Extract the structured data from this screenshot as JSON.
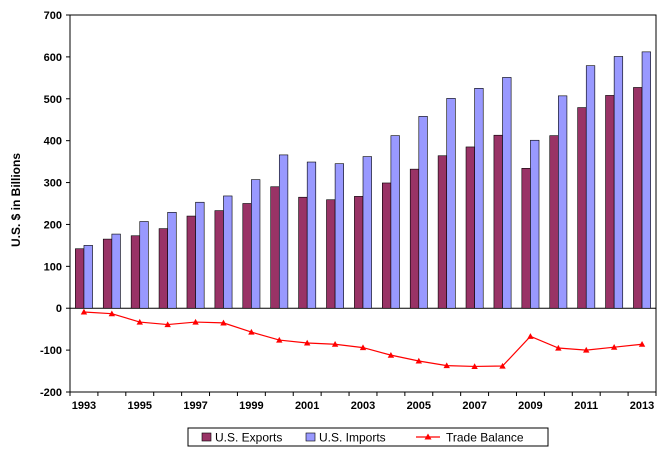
{
  "chart_data": {
    "type": "bar",
    "ylabel": "U.S. $ in Billions",
    "ylim": [
      -200,
      700
    ],
    "yticks": [
      -200,
      -100,
      0,
      100,
      200,
      300,
      400,
      500,
      600,
      700
    ],
    "x": [
      "1993",
      "1994",
      "1995",
      "1996",
      "1997",
      "1998",
      "1999",
      "2000",
      "2001",
      "2002",
      "2003",
      "2004",
      "2005",
      "2006",
      "2007",
      "2008",
      "2009",
      "2010",
      "2011",
      "2012",
      "2013"
    ],
    "xtick_labels": [
      "1993",
      "1995",
      "1997",
      "1999",
      "2001",
      "2003",
      "2005",
      "2007",
      "2009",
      "2011",
      "2013"
    ],
    "series": [
      {
        "name": "U.S. Exports",
        "type": "bar",
        "color": "#993366",
        "values": [
          142,
          165,
          173,
          190,
          220,
          233,
          250,
          290,
          265,
          259,
          267,
          299,
          332,
          364,
          385,
          413,
          334,
          412,
          479,
          508,
          527
        ]
      },
      {
        "name": "U.S. Imports",
        "type": "bar",
        "color": "#9999ff",
        "values": [
          150,
          177,
          207,
          229,
          253,
          268,
          307,
          366,
          349,
          345,
          362,
          412,
          458,
          501,
          525,
          551,
          401,
          507,
          579,
          601,
          612
        ]
      },
      {
        "name": "Trade Balance",
        "type": "line",
        "color": "#ff0000",
        "values": [
          -9,
          -13,
          -33,
          -39,
          -33,
          -35,
          -57,
          -76,
          -83,
          -86,
          -94,
          -112,
          -126,
          -137,
          -139,
          -138,
          -67,
          -95,
          -100,
          -93,
          -86
        ]
      }
    ],
    "legend_position": "bottom",
    "grid": false
  }
}
